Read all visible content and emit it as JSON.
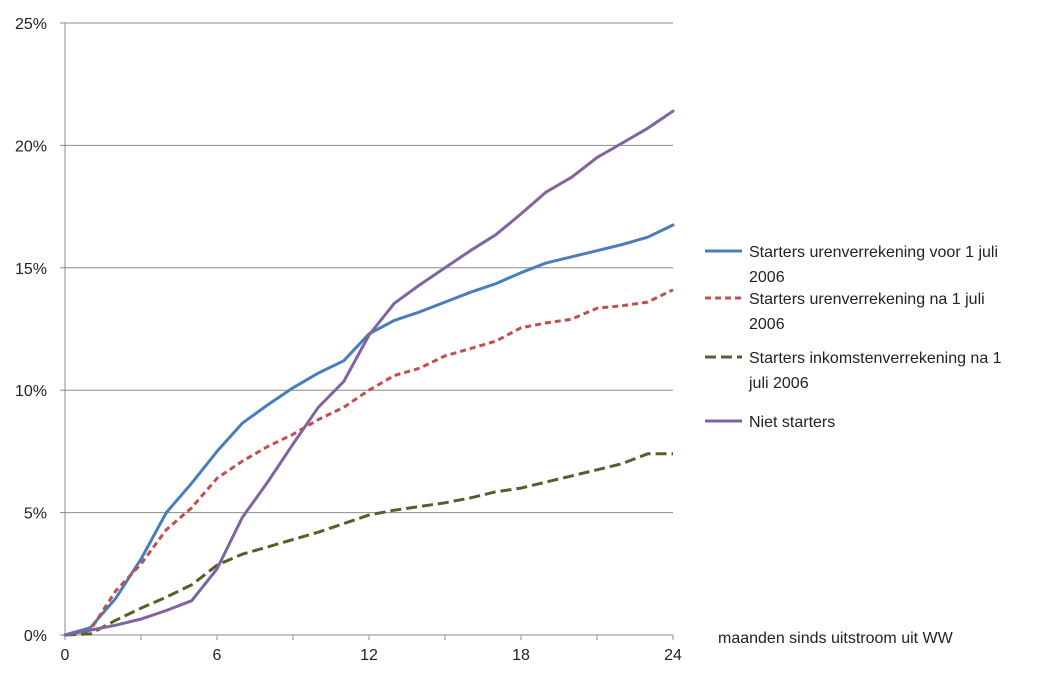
{
  "chart_data": {
    "type": "line",
    "title": "",
    "xlabel": "maanden sinds uitstroom uit WW",
    "ylabel": "",
    "xlim": [
      0,
      24
    ],
    "ylim": [
      0,
      25
    ],
    "x_ticks": [
      0,
      6,
      12,
      18,
      24
    ],
    "y_ticks": [
      0,
      5,
      10,
      15,
      20,
      25
    ],
    "y_tick_labels": [
      "0%",
      "5%",
      "10%",
      "15%",
      "20%",
      "25%"
    ],
    "grid": "horizontal",
    "legend_position": "right",
    "x": [
      0,
      1,
      2,
      3,
      4,
      5,
      6,
      7,
      8,
      9,
      10,
      11,
      12,
      13,
      14,
      15,
      16,
      17,
      18,
      19,
      20,
      21,
      22,
      23,
      24
    ],
    "series": [
      {
        "name": "Starters urenverrekening voor 1 juli 2006",
        "legend_lines": [
          "Starters urenverrekening voor 1 juli",
          "2006"
        ],
        "color": "#4a7ebb",
        "dash": "solid",
        "values": [
          0,
          0.3,
          1.5,
          3.1,
          5.0,
          6.2,
          7.5,
          8.65,
          9.4,
          10.1,
          10.7,
          11.2,
          12.3,
          12.85,
          13.2,
          13.6,
          14.0,
          14.35,
          14.8,
          15.2,
          15.45,
          15.7,
          15.95,
          16.25,
          16.75
        ]
      },
      {
        "name": "Starters urenverrekening na 1 juli 2006",
        "legend_lines": [
          "Starters urenverrekening na 1 juli",
          "2006"
        ],
        "color": "#c0504d",
        "dash": "dashed",
        "values": [
          0,
          0.2,
          1.8,
          2.9,
          4.3,
          5.2,
          6.4,
          7.1,
          7.7,
          8.2,
          8.8,
          9.3,
          10.0,
          10.6,
          10.9,
          11.4,
          11.7,
          12.0,
          12.55,
          12.75,
          12.9,
          13.35,
          13.45,
          13.6,
          14.1
        ]
      },
      {
        "name": "Starters inkomstenverrekening na 1 juli 2006",
        "legend_lines": [
          "Starters inkomstenverrekening na 1",
          "juli 2006"
        ],
        "color": "#4f6228",
        "dash": "dashed",
        "values": [
          0,
          0.05,
          0.6,
          1.1,
          1.55,
          2.05,
          2.85,
          3.3,
          3.6,
          3.9,
          4.2,
          4.55,
          4.9,
          5.1,
          5.25,
          5.4,
          5.6,
          5.85,
          6.0,
          6.25,
          6.5,
          6.75,
          7.0,
          7.4,
          7.4
        ]
      },
      {
        "name": "Niet starters",
        "legend_lines": [
          "Niet starters"
        ],
        "color": "#8064a2",
        "dash": "solid",
        "values": [
          0,
          0.2,
          0.4,
          0.65,
          1.0,
          1.4,
          2.7,
          4.8,
          6.25,
          7.8,
          9.3,
          10.35,
          12.25,
          13.55,
          14.3,
          15.0,
          15.7,
          16.35,
          17.2,
          18.1,
          18.7,
          19.5,
          20.1,
          20.7,
          21.4
        ]
      }
    ]
  }
}
